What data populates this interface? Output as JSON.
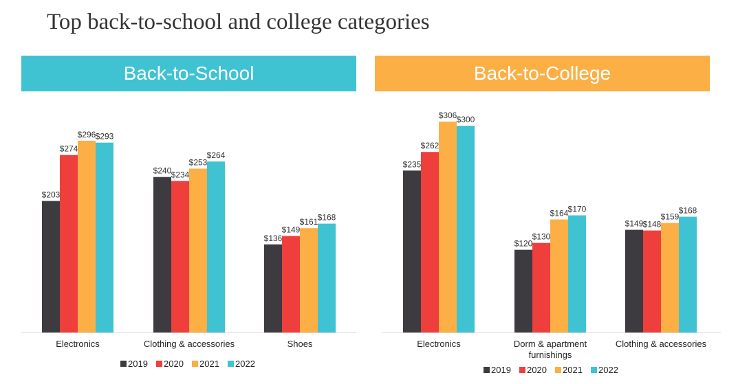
{
  "title": "Top back-to-school and college categories",
  "colors": {
    "2019": "#3d3a40",
    "2020": "#ee3f3d",
    "2021": "#fbaf45",
    "2022": "#3fc3d2"
  },
  "chart_data": [
    {
      "type": "bar",
      "title": "Back-to-School",
      "categories": [
        "Electronics",
        "Clothing & accessories",
        "Shoes"
      ],
      "series": [
        {
          "name": "2019",
          "values": [
            203,
            240,
            136
          ]
        },
        {
          "name": "2020",
          "values": [
            274,
            234,
            149
          ]
        },
        {
          "name": "2021",
          "values": [
            296,
            253,
            161
          ]
        },
        {
          "name": "2022",
          "values": [
            293,
            264,
            168
          ]
        }
      ],
      "value_prefix": "$",
      "ylim": [
        0,
        320
      ],
      "grid": false,
      "legend": "bottom"
    },
    {
      "type": "bar",
      "title": "Back-to-College",
      "categories": [
        "Electronics",
        "Dorm & apartment furnishings",
        "Clothing & accessories"
      ],
      "series": [
        {
          "name": "2019",
          "values": [
            235,
            120,
            149
          ]
        },
        {
          "name": "2020",
          "values": [
            262,
            130,
            148
          ]
        },
        {
          "name": "2021",
          "values": [
            306,
            164,
            159
          ]
        },
        {
          "name": "2022",
          "values": [
            300,
            170,
            168
          ]
        }
      ],
      "value_prefix": "$",
      "ylim": [
        0,
        320
      ],
      "grid": false,
      "legend": "bottom"
    }
  ]
}
